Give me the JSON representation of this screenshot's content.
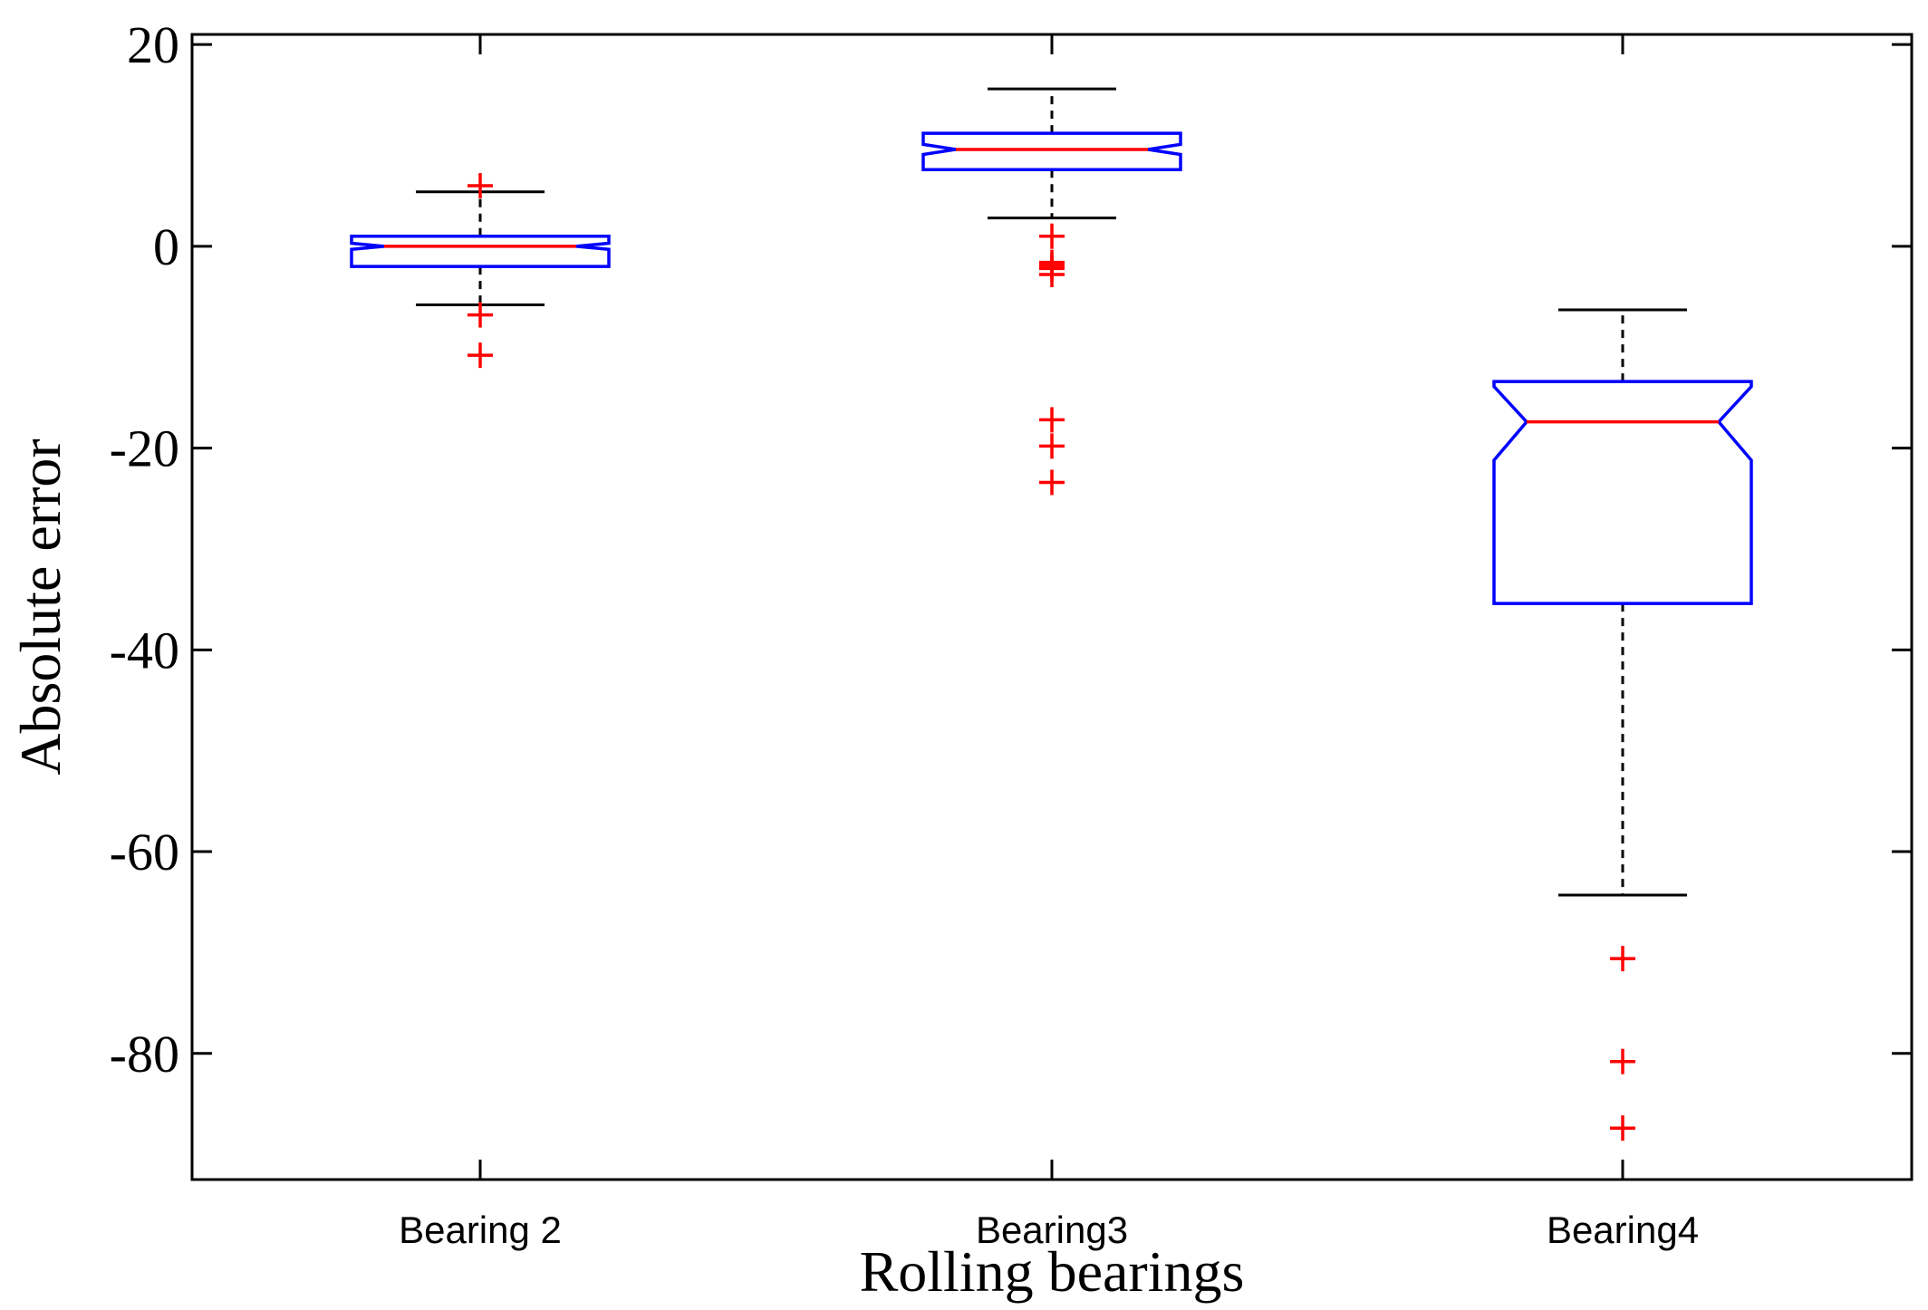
{
  "chart_data": {
    "type": "boxplot",
    "title": "",
    "xlabel": "Rolling bearings",
    "ylabel": "Absolute error",
    "ylim": [
      -92.5,
      21
    ],
    "yticks": [
      20,
      0,
      -20,
      -40,
      -60,
      -80
    ],
    "ytick_labels": [
      "20",
      "0",
      "-20",
      "-40",
      "-60",
      "-80"
    ],
    "notched": true,
    "grid": false,
    "colors": {
      "box": "#0000ff",
      "median": "#ff0000",
      "whisker": "#000000",
      "outlier": "#ff0000"
    },
    "categories": [
      "Bearing 2",
      "Bearing3",
      "Bearing4"
    ],
    "boxes": [
      {
        "q1": -2.0,
        "median": 0.0,
        "q3": 1.0,
        "notch_low": -0.3,
        "notch_high": 0.3,
        "whisker_low": -5.8,
        "whisker_high": 5.4,
        "outliers": [
          6.0,
          -6.8,
          -10.8
        ]
      },
      {
        "q1": 7.6,
        "median": 9.6,
        "q3": 11.2,
        "notch_low": 9.1,
        "notch_high": 10.1,
        "whisker_low": 2.8,
        "whisker_high": 15.6,
        "outliers": [
          1.0,
          -1.6,
          -1.9,
          -2.2,
          -2.8,
          -17.2,
          -19.8,
          -23.4
        ]
      },
      {
        "q1": -35.4,
        "median": -17.4,
        "q3": -13.4,
        "notch_low": -21.2,
        "notch_high": -13.9,
        "whisker_low": -64.3,
        "whisker_high": -6.3,
        "outliers": [
          -70.6,
          -80.8,
          -87.4
        ]
      }
    ]
  }
}
